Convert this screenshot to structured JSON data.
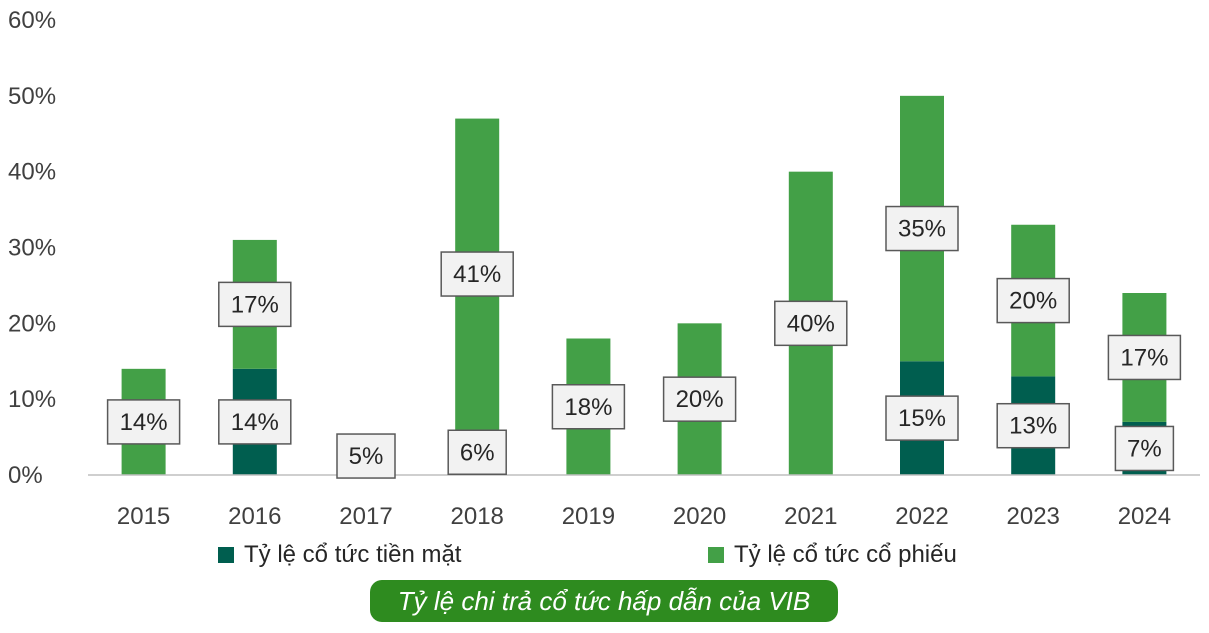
{
  "colors": {
    "cash": "#005e4f",
    "stock": "#43a047",
    "axis": "#bfbfbf",
    "caption_bg": "#2e8b1f"
  },
  "chart_data": {
    "type": "bar",
    "stacked": true,
    "categories": [
      "2015",
      "2016",
      "2017",
      "2018",
      "2019",
      "2020",
      "2021",
      "2022",
      "2023",
      "2024"
    ],
    "series": [
      {
        "name": "Tỷ lệ cổ tức tiền mặt",
        "values": [
          0,
          14,
          5,
          6,
          0,
          0,
          0,
          15,
          13,
          7
        ]
      },
      {
        "name": "Tỷ lệ cổ tức cổ phiếu",
        "values": [
          14,
          17,
          0,
          41,
          18,
          20,
          40,
          35,
          20,
          17
        ]
      }
    ],
    "data_labels": [
      {
        "category": "2015",
        "series": 1,
        "text": "14%"
      },
      {
        "category": "2016",
        "series": 1,
        "text": "17%"
      },
      {
        "category": "2016",
        "series": 0,
        "text": "14%"
      },
      {
        "category": "2017",
        "series": 0,
        "text": "5%"
      },
      {
        "category": "2018",
        "series": 1,
        "text": "41%"
      },
      {
        "category": "2018",
        "series": 0,
        "text": "6%"
      },
      {
        "category": "2019",
        "series": 1,
        "text": "18%"
      },
      {
        "category": "2020",
        "series": 1,
        "text": "20%"
      },
      {
        "category": "2021",
        "series": 1,
        "text": "40%"
      },
      {
        "category": "2022",
        "series": 1,
        "text": "35%"
      },
      {
        "category": "2022",
        "series": 0,
        "text": "15%"
      },
      {
        "category": "2023",
        "series": 1,
        "text": "20%"
      },
      {
        "category": "2023",
        "series": 0,
        "text": "13%"
      },
      {
        "category": "2024",
        "series": 1,
        "text": "17%"
      },
      {
        "category": "2024",
        "series": 0,
        "text": "7%"
      }
    ],
    "yticks": [
      "0%",
      "10%",
      "20%",
      "30%",
      "40%",
      "50%",
      "60%"
    ],
    "ylim": [
      0,
      60
    ],
    "legend_position": "bottom",
    "title": "Tỷ lệ chi trả cổ tức hấp dẫn của VIB"
  }
}
